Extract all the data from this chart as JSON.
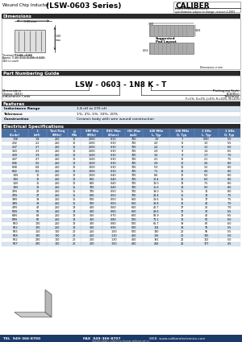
{
  "title_left": "Wound Chip Inductor",
  "title_center": "(LSW-0603 Series)",
  "company": "CALIBER",
  "company_sub": "ELECTRONICS CORP.",
  "company_sub2": "specifications subject to change  revision 3-2003",
  "section_dims": "Dimensions",
  "section_pn": "Part Numbering Guide",
  "pn_example": "LSW - 0603 - 1N8 K - T",
  "pn_dim_label": "Dimensions",
  "pn_dim_sub": "(Series: 0603)",
  "pn_ind_label": "Inductance Code",
  "pn_pkg_label": "Packaging Style",
  "pn_pkg_sub": "Bulk/Reel",
  "pn_tol_label": "Tolerance",
  "pn_tol_sub": "F=1%, G=2%, J=5%, K=10%, M=20%",
  "section_feat": "Features",
  "feat_rows": [
    [
      "Inductance Range",
      "1.8 nH to 270 nH"
    ],
    [
      "Tolerance",
      "1%, 2%, 5%, 10%, 20%"
    ],
    [
      "Construction",
      "Ceramic body with wire wound construction"
    ]
  ],
  "section_elec": "Electrical Specifications",
  "elec_headers": [
    "L\n(Code)",
    "L\n(nH)",
    "Test Freq\n(MHz)",
    "Q\nMin",
    "SRF Min\n(MHz)",
    "RDC Max\n(Ohms)",
    "IDC Max\n(mA)",
    "100 MHz\nL, Typ",
    "100 MHz\nQ, Typ",
    "1 GHz\nL, Typ",
    "1 GHz\nQ, Typ"
  ],
  "elec_data": [
    [
      "1N8",
      "1.8",
      "250",
      "10",
      "2000",
      "0.33",
      "700",
      "1.6",
      "7",
      "0.80",
      "5.0"
    ],
    [
      "2N2",
      "2.2",
      "250",
      "10",
      "2000",
      "0.30",
      "700",
      "2.0",
      "8",
      "1.0",
      "5.5"
    ],
    [
      "2N7",
      "2.7",
      "250",
      "10",
      "2000",
      "0.30",
      "700",
      "2.4",
      "8",
      "1.2",
      "6.0"
    ],
    [
      "3N3",
      "3.3",
      "250",
      "10",
      "2000",
      "0.30",
      "700",
      "2.9",
      "9",
      "1.4",
      "6.5"
    ],
    [
      "3N9",
      "3.9",
      "250",
      "10",
      "1500",
      "0.30",
      "700",
      "3.4",
      "9",
      "1.7",
      "7.0"
    ],
    [
      "4N7",
      "4.7",
      "250",
      "10",
      "1500",
      "0.30",
      "700",
      "4.1",
      "10",
      "2.1",
      "7.5"
    ],
    [
      "5N6",
      "5.6",
      "250",
      "10",
      "1500",
      "0.30",
      "700",
      "4.9",
      "10",
      "2.6",
      "8.0"
    ],
    [
      "6N8",
      "6.8",
      "250",
      "12",
      "1000",
      "0.30",
      "700",
      "5.9",
      "11",
      "3.2",
      "8.0"
    ],
    [
      "8N2",
      "8.2",
      "250",
      "12",
      "1000",
      "0.30",
      "700",
      "7.1",
      "11",
      "4.0",
      "8.0"
    ],
    [
      "10N",
      "10",
      "250",
      "12",
      "1000",
      "0.40",
      "700",
      "8.6",
      "12",
      "5.0",
      "8.0"
    ],
    [
      "12N",
      "12",
      "250",
      "12",
      "800",
      "0.40",
      "700",
      "10.4",
      "12",
      "6.0",
      "8.0"
    ],
    [
      "15N",
      "15",
      "250",
      "12",
      "800",
      "0.40",
      "700",
      "13.0",
      "13",
      "7.5",
      "8.0"
    ],
    [
      "18N",
      "18",
      "250",
      "15",
      "700",
      "0.40",
      "700",
      "15.6",
      "14",
      "9.3",
      "8.0"
    ],
    [
      "22N",
      "22",
      "250",
      "15",
      "700",
      "0.50",
      "700",
      "19.0",
      "15",
      "11",
      "8.0"
    ],
    [
      "27N",
      "27",
      "250",
      "15",
      "600",
      "0.50",
      "700",
      "23.4",
      "15",
      "14",
      "7.5"
    ],
    [
      "33N",
      "33",
      "250",
      "15",
      "500",
      "0.50",
      "600",
      "28.6",
      "16",
      "17",
      "7.5"
    ],
    [
      "39N",
      "39",
      "250",
      "15",
      "500",
      "0.50",
      "600",
      "33.8",
      "16",
      "21",
      "7.0"
    ],
    [
      "47N",
      "47",
      "250",
      "18",
      "400",
      "0.60",
      "600",
      "40.7",
      "17",
      "26",
      "7.0"
    ],
    [
      "56N",
      "56",
      "250",
      "18",
      "400",
      "0.60",
      "600",
      "48.6",
      "17",
      "32",
      "6.5"
    ],
    [
      "68N",
      "68",
      "250",
      "18",
      "350",
      "0.70",
      "600",
      "58.9",
      "18",
      "40",
      "6.5"
    ],
    [
      "82N",
      "82",
      "250",
      "18",
      "350",
      "0.80",
      "500",
      "71.1",
      "18",
      "50",
      "6.0"
    ],
    [
      "R10",
      "100",
      "250",
      "18",
      "300",
      "0.80",
      "500",
      "86.7",
      "19",
      "62",
      "6.0"
    ],
    [
      "R12",
      "120",
      "250",
      "18",
      "300",
      "0.90",
      "500",
      "104",
      "19",
      "76",
      "5.5"
    ],
    [
      "R15",
      "150",
      "100",
      "20",
      "250",
      "1.00",
      "500",
      "130",
      "20",
      "95",
      "5.5"
    ],
    [
      "R18",
      "180",
      "100",
      "20",
      "250",
      "1.10",
      "450",
      "156",
      "20",
      "115",
      "5.0"
    ],
    [
      "R22",
      "220",
      "100",
      "20",
      "200",
      "1.30",
      "400",
      "191",
      "21",
      "142",
      "5.0"
    ],
    [
      "R27",
      "270",
      "100",
      "20",
      "200",
      "1.50",
      "400",
      "234",
      "21",
      "177",
      "4.5"
    ]
  ],
  "footer_tel": "TEL  949-366-8700",
  "footer_fax": "FAX  949-366-8707",
  "footer_web": "WEB  www.caliberelectronics.com",
  "footer_note": "Specifications subject to change without notice.",
  "bg_color": "#ffffff",
  "section_header_bg": "#1a1a2e",
  "section_header_fg": "#ffffff",
  "table_header_bg": "#4a6fa5",
  "row_alt_color": "#d8e4f0",
  "row_normal_color": "#ffffff",
  "footer_bg": "#1a3a6a"
}
